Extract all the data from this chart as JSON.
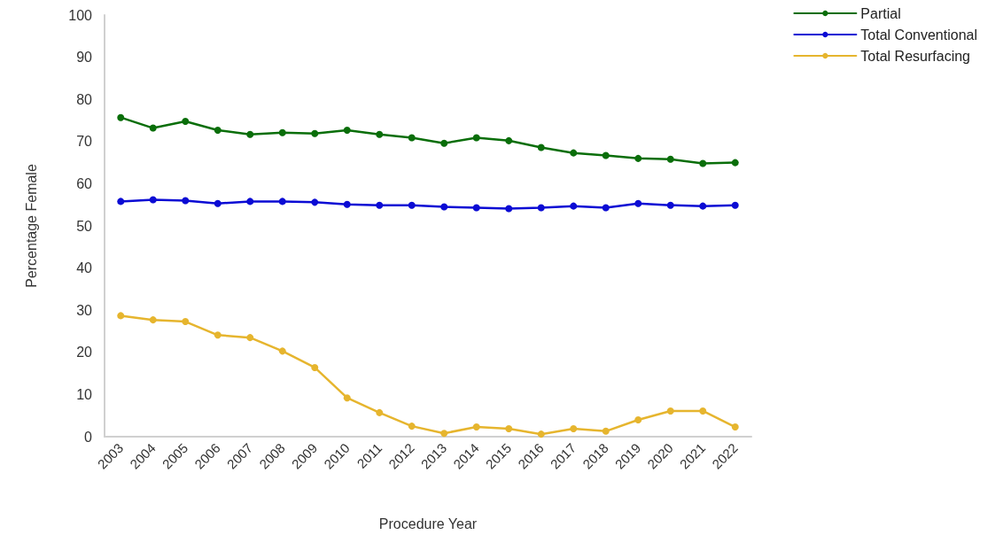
{
  "chart_data": {
    "type": "line",
    "xlabel": "Procedure Year",
    "ylabel": "Percentage Female",
    "categories": [
      "2003",
      "2004",
      "2005",
      "2006",
      "2007",
      "2008",
      "2009",
      "2010",
      "2011",
      "2012",
      "2013",
      "2014",
      "2015",
      "2016",
      "2017",
      "2018",
      "2019",
      "2020",
      "2021",
      "2022"
    ],
    "series": [
      {
        "name": "Partial",
        "color": "#0a6e0a",
        "values": [
          75.7,
          73.2,
          74.8,
          72.7,
          71.7,
          72.1,
          71.9,
          72.7,
          71.7,
          70.9,
          69.6,
          70.9,
          70.2,
          68.6,
          67.3,
          66.7,
          66.0,
          65.8,
          64.8,
          65.0
        ]
      },
      {
        "name": "Total Conventional",
        "color": "#0b0bd4",
        "values": [
          55.8,
          56.2,
          56.0,
          55.3,
          55.8,
          55.8,
          55.6,
          55.1,
          54.9,
          54.9,
          54.5,
          54.3,
          54.1,
          54.3,
          54.7,
          54.3,
          55.3,
          54.9,
          54.7,
          54.9
        ]
      },
      {
        "name": "Total Resurfacing",
        "color": "#e6b52e",
        "values": [
          28.7,
          27.7,
          27.3,
          24.1,
          23.5,
          20.3,
          16.4,
          9.2,
          5.7,
          2.5,
          0.8,
          2.3,
          1.9,
          0.6,
          1.9,
          1.3,
          4.0,
          6.1,
          6.1,
          2.3
        ]
      }
    ],
    "ylim": [
      0,
      100
    ],
    "yticks": [
      0,
      10,
      20,
      30,
      40,
      50,
      60,
      70,
      80,
      90,
      100
    ],
    "grid": false,
    "legend": "top right",
    "marker": "circle",
    "line_style": "solid"
  }
}
